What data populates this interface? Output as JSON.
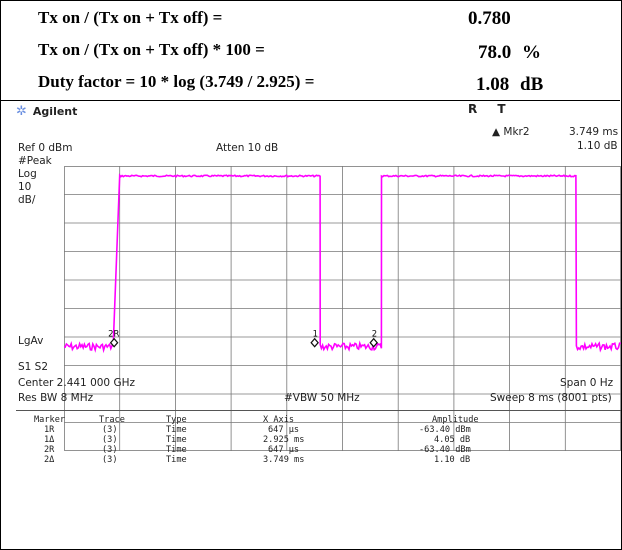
{
  "calculations": [
    {
      "formula": "Tx on / (Tx on + Tx off) =",
      "result": "0.780",
      "unit": ""
    },
    {
      "formula": "Tx on / (Tx on + Tx off) * 100 =",
      "result": "78.0",
      "unit": "%"
    },
    {
      "formula": "Duty factor = 10 * log (3.749 / 2.925) =",
      "result": "1.08",
      "unit": "dB"
    }
  ],
  "analyzer": {
    "brand": "Agilent",
    "status": "R  T",
    "marker_readout": {
      "label": "▲ Mkr2",
      "time": "3.749 ms",
      "amplitude": "1.10 dB"
    },
    "ref": "Ref 0 dBm",
    "atten": "Atten 10 dB",
    "detector": "#Peak",
    "scale_lines": [
      "Log",
      "10",
      "dB/"
    ],
    "lgav": "LgAv",
    "s1s2": "S1  S2",
    "center": "Center 2.441 000 GHz",
    "span": "Span 0 Hz",
    "res_bw": "Res BW 8 MHz",
    "vbw": "#VBW 50 MHz",
    "sweep": "Sweep 8 ms (8001 pts)",
    "trace_color": "#ff00ff",
    "trace_levels": {
      "high_db": -3.5,
      "low_db": -63.4
    },
    "trace_segments_fraction_of_sweep": [
      {
        "from": 0.0,
        "to": 0.09,
        "level": "low"
      },
      {
        "from": 0.1,
        "to": 0.46,
        "level": "high"
      },
      {
        "from": 0.46,
        "to": 0.57,
        "level": "low"
      },
      {
        "from": 0.57,
        "to": 0.92,
        "level": "high"
      },
      {
        "from": 0.92,
        "to": 1.0,
        "level": "low"
      }
    ],
    "markers_on_trace": [
      {
        "label": "2R",
        "time_fraction": 0.09
      },
      {
        "label": "1",
        "time_fraction": 0.45
      },
      {
        "label": "2",
        "time_fraction": 0.556
      }
    ],
    "marker_table": {
      "headers": [
        "Marker",
        "Trace",
        "Type",
        "X Axis",
        "Amplitude"
      ],
      "rows": [
        [
          "1R",
          "(3)",
          "Time",
          "647 µs",
          "-63.40 dBm"
        ],
        [
          "1Δ",
          "(3)",
          "Time",
          "2.925 ms",
          "4.05 dB"
        ],
        [
          "2R",
          "(3)",
          "Time",
          "647 µs",
          "-63.40 dBm"
        ],
        [
          "2Δ",
          "(3)",
          "Time",
          "3.749 ms",
          "1.10 dB"
        ]
      ]
    }
  }
}
